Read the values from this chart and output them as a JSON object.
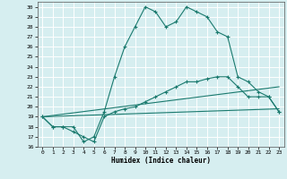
{
  "xlabel": "Humidex (Indice chaleur)",
  "ylabel": "",
  "bg_color": "#d6eef0",
  "grid_color": "#ffffff",
  "line_color": "#1a7a6e",
  "xlim": [
    -0.5,
    23.5
  ],
  "ylim": [
    16,
    30.5
  ],
  "xticks": [
    0,
    1,
    2,
    3,
    4,
    5,
    6,
    7,
    8,
    9,
    10,
    11,
    12,
    13,
    14,
    15,
    16,
    17,
    18,
    19,
    20,
    21,
    22,
    23
  ],
  "yticks": [
    16,
    17,
    18,
    19,
    20,
    21,
    22,
    23,
    24,
    25,
    26,
    27,
    28,
    29,
    30
  ],
  "series": [
    {
      "x": [
        0,
        1,
        2,
        3,
        4,
        5,
        6,
        7,
        8,
        9,
        10,
        11,
        12,
        13,
        14,
        15,
        16,
        17,
        18,
        19,
        20,
        21,
        22,
        23
      ],
      "y": [
        19,
        18,
        18,
        18,
        16.5,
        17,
        19.5,
        23,
        26,
        28,
        30,
        29.5,
        28,
        28.5,
        30,
        29.5,
        29,
        27.5,
        27,
        23,
        22.5,
        21.5,
        21,
        19.5
      ],
      "marker": true
    },
    {
      "x": [
        0,
        1,
        2,
        3,
        4,
        5,
        6,
        7,
        8,
        9,
        10,
        11,
        12,
        13,
        14,
        15,
        16,
        17,
        18,
        19,
        20,
        21,
        22,
        23
      ],
      "y": [
        19,
        18,
        18,
        17.5,
        17,
        16.5,
        19,
        19.5,
        19.8,
        20,
        20.5,
        21,
        21.5,
        22,
        22.5,
        22.5,
        22.8,
        23,
        23,
        22,
        21,
        21,
        21,
        19.5
      ],
      "marker": true
    },
    {
      "x": [
        0,
        23
      ],
      "y": [
        19,
        22
      ],
      "marker": false
    },
    {
      "x": [
        0,
        23
      ],
      "y": [
        19,
        19.8
      ],
      "marker": false
    }
  ]
}
